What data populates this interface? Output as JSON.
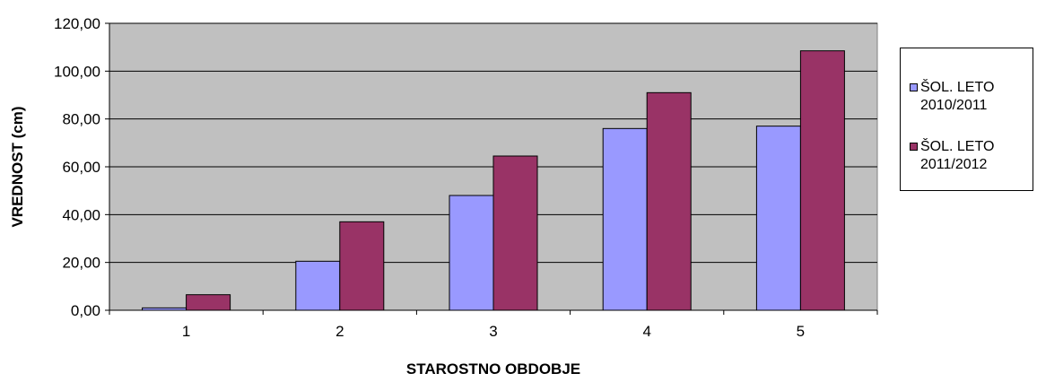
{
  "chart_data": {
    "type": "bar",
    "title": "",
    "xlabel": "STAROSTNO OBDOBJE",
    "ylabel": "VREDNOST (cm)",
    "categories": [
      "1",
      "2",
      "3",
      "4",
      "5"
    ],
    "ylim": [
      0,
      120
    ],
    "yticks": [
      "0,00",
      "20,00",
      "40,00",
      "60,00",
      "80,00",
      "100,00",
      "120,00"
    ],
    "ytick_values": [
      0,
      20,
      40,
      60,
      80,
      100,
      120
    ],
    "grid": true,
    "legend_position": "right",
    "plot_background": "#c0c0c0",
    "series": [
      {
        "name": "ŠOL. LETO 2010/2011",
        "color": "#9999ff",
        "values": [
          1,
          20.5,
          48,
          76,
          77
        ]
      },
      {
        "name": "ŠOL. LETO 2011/2012",
        "color": "#993366",
        "values": [
          6.5,
          37,
          64.5,
          91,
          108.5
        ]
      }
    ]
  }
}
